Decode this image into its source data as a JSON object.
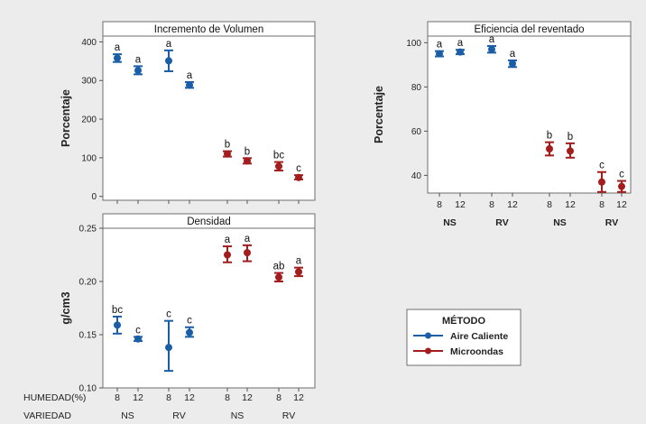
{
  "chart_data": [
    {
      "type": "interval",
      "title": "Incremento de Volumen",
      "ylabel": "Porcentaje",
      "ylim": [
        -10,
        415
      ],
      "yticks": [
        0,
        100,
        200,
        300,
        400
      ],
      "points": [
        {
          "group": "Aire Caliente",
          "variedad": "NS",
          "humedad": "8",
          "mean": 358,
          "low": 348,
          "high": 368,
          "letter": "a"
        },
        {
          "group": "Aire Caliente",
          "variedad": "NS",
          "humedad": "12",
          "mean": 326,
          "low": 316,
          "high": 337,
          "letter": "a"
        },
        {
          "group": "Aire Caliente",
          "variedad": "RV",
          "humedad": "8",
          "mean": 351,
          "low": 324,
          "high": 378,
          "letter": "a"
        },
        {
          "group": "Aire Caliente",
          "variedad": "RV",
          "humedad": "12",
          "mean": 288,
          "low": 281,
          "high": 296,
          "letter": "a"
        },
        {
          "group": "Microondas",
          "variedad": "NS",
          "humedad": "8",
          "mean": 110,
          "low": 103,
          "high": 117,
          "letter": "b"
        },
        {
          "group": "Microondas",
          "variedad": "NS",
          "humedad": "12",
          "mean": 92,
          "low": 85,
          "high": 99,
          "letter": "b"
        },
        {
          "group": "Microondas",
          "variedad": "RV",
          "humedad": "8",
          "mean": 78,
          "low": 67,
          "high": 89,
          "letter": "bc"
        },
        {
          "group": "Microondas",
          "variedad": "RV",
          "humedad": "12",
          "mean": 49,
          "low": 44,
          "high": 55,
          "letter": "c"
        }
      ]
    },
    {
      "type": "interval",
      "title": "Eficiencia del reventado",
      "ylabel": "Porcentaje",
      "ylim": [
        32,
        103
      ],
      "yticks": [
        40,
        60,
        80,
        100
      ],
      "points": [
        {
          "group": "Aire Caliente",
          "variedad": "NS",
          "humedad": "8",
          "mean": 95,
          "low": 93.8,
          "high": 96.2,
          "letter": "a"
        },
        {
          "group": "Aire Caliente",
          "variedad": "NS",
          "humedad": "12",
          "mean": 95.8,
          "low": 94.8,
          "high": 96.8,
          "letter": "a"
        },
        {
          "group": "Aire Caliente",
          "variedad": "RV",
          "humedad": "8",
          "mean": 97,
          "low": 95.5,
          "high": 98.5,
          "letter": "a"
        },
        {
          "group": "Aire Caliente",
          "variedad": "RV",
          "humedad": "12",
          "mean": 90.5,
          "low": 89,
          "high": 92,
          "letter": "a"
        },
        {
          "group": "Microondas",
          "variedad": "NS",
          "humedad": "8",
          "mean": 52,
          "low": 49,
          "high": 55,
          "letter": "b"
        },
        {
          "group": "Microondas",
          "variedad": "NS",
          "humedad": "12",
          "mean": 51,
          "low": 48,
          "high": 54.5,
          "letter": "b"
        },
        {
          "group": "Microondas",
          "variedad": "RV",
          "humedad": "8",
          "mean": 37,
          "low": 32.5,
          "high": 41.5,
          "letter": "c"
        },
        {
          "group": "Microondas",
          "variedad": "RV",
          "humedad": "12",
          "mean": 35,
          "low": 32.5,
          "high": 37.5,
          "letter": "c"
        }
      ]
    },
    {
      "type": "interval",
      "title": "Densidad",
      "ylabel": "g/cm3",
      "ylim": [
        0.1,
        0.25
      ],
      "yticks": [
        0.1,
        0.15,
        0.2,
        0.25
      ],
      "points": [
        {
          "group": "Aire Caliente",
          "variedad": "NS",
          "humedad": "8",
          "mean": 0.159,
          "low": 0.151,
          "high": 0.167,
          "letter": "bc"
        },
        {
          "group": "Aire Caliente",
          "variedad": "NS",
          "humedad": "12",
          "mean": 0.146,
          "low": 0.144,
          "high": 0.148,
          "letter": "c"
        },
        {
          "group": "Aire Caliente",
          "variedad": "RV",
          "humedad": "8",
          "mean": 0.138,
          "low": 0.116,
          "high": 0.163,
          "letter": "c"
        },
        {
          "group": "Aire Caliente",
          "variedad": "RV",
          "humedad": "12",
          "mean": 0.152,
          "low": 0.148,
          "high": 0.157,
          "letter": "c"
        },
        {
          "group": "Microondas",
          "variedad": "NS",
          "humedad": "8",
          "mean": 0.225,
          "low": 0.218,
          "high": 0.233,
          "letter": "a"
        },
        {
          "group": "Microondas",
          "variedad": "NS",
          "humedad": "12",
          "mean": 0.227,
          "low": 0.219,
          "high": 0.234,
          "letter": "a"
        },
        {
          "group": "Microondas",
          "variedad": "RV",
          "humedad": "8",
          "mean": 0.204,
          "low": 0.2,
          "high": 0.208,
          "letter": "ab"
        },
        {
          "group": "Microondas",
          "variedad": "RV",
          "humedad": "12",
          "mean": 0.209,
          "low": 0.205,
          "high": 0.213,
          "letter": "a"
        }
      ]
    }
  ],
  "axis_rows": {
    "humedad_label": "HUMEDAD(%)",
    "variedad_label": "VARIEDAD",
    "humedad": [
      "8",
      "12",
      "8",
      "12",
      "8",
      "12",
      "8",
      "12"
    ],
    "variedad": [
      "NS",
      "RV",
      "NS",
      "RV"
    ]
  },
  "legend": {
    "title": "MÉTODO",
    "items": [
      {
        "label": "Aire Caliente",
        "color": "#1a5ea8"
      },
      {
        "label": "Microondas",
        "color": "#a31d1d"
      }
    ]
  },
  "colors": {
    "Aire Caliente": "#1a5ea8",
    "Microondas": "#a31d1d"
  }
}
